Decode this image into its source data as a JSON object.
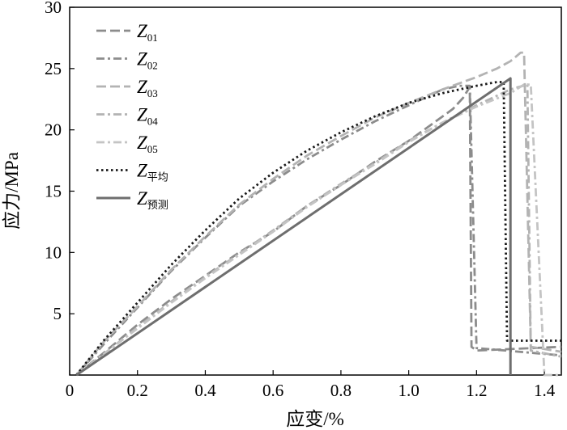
{
  "chart_data": {
    "type": "line",
    "title": "",
    "xlabel": "应变/%",
    "ylabel": "应力/MPa",
    "xlim": [
      0,
      1.45
    ],
    "ylim": [
      0,
      30
    ],
    "xticks": [
      0,
      0.2,
      0.4,
      0.6,
      0.8,
      1.0,
      1.2,
      1.4
    ],
    "xtick_labels": [
      "0",
      "0.2",
      "0.4",
      "0.6",
      "0.8",
      "1.0",
      "1.2",
      "1.4"
    ],
    "yticks": [
      5,
      10,
      15,
      20,
      25,
      30
    ],
    "ytick_labels": [
      "5",
      "10",
      "15",
      "20",
      "25",
      "30"
    ],
    "grid": false,
    "legend_position": "top-left",
    "series": [
      {
        "name": "Z01",
        "name_main": "Z",
        "name_sub": "01",
        "style": "dashed",
        "color": "#8c8c8c",
        "x": [
          0.02,
          0.1,
          0.2,
          0.3,
          0.4,
          0.5,
          0.6,
          0.7,
          0.8,
          0.9,
          1.0,
          1.05,
          1.1,
          1.13,
          1.16,
          1.18,
          1.185,
          1.2,
          1.45
        ],
        "y": [
          0.0,
          1.8,
          4.1,
          6.2,
          8.1,
          10.0,
          11.7,
          13.8,
          15.5,
          17.4,
          19.1,
          20.1,
          21.1,
          21.7,
          22.6,
          23.5,
          2.3,
          2.0,
          2.3
        ]
      },
      {
        "name": "Z02",
        "name_main": "Z",
        "name_sub": "02",
        "style": "dash-dot",
        "color": "#8c8c8c",
        "x": [
          0.02,
          0.1,
          0.2,
          0.3,
          0.4,
          0.5,
          0.6,
          0.7,
          0.8,
          0.9,
          1.0,
          1.1,
          1.15,
          1.18,
          1.2,
          1.45
        ],
        "y": [
          0.0,
          2.5,
          5.5,
          8.5,
          11.2,
          13.8,
          15.8,
          17.6,
          19.2,
          20.7,
          22.0,
          23.3,
          23.6,
          23.6,
          2.2,
          1.6
        ]
      },
      {
        "name": "Z03",
        "name_main": "Z",
        "name_sub": "03",
        "style": "dashed",
        "color": "#b3b3b3",
        "x": [
          0.02,
          0.1,
          0.2,
          0.3,
          0.4,
          0.5,
          0.6,
          0.7,
          0.8,
          0.9,
          1.0,
          1.1,
          1.2,
          1.26,
          1.3,
          1.33,
          1.34,
          1.36,
          1.45
        ],
        "y": [
          0.0,
          2.7,
          5.6,
          8.6,
          11.3,
          13.9,
          16.0,
          17.9,
          19.5,
          21.0,
          22.2,
          23.3,
          24.3,
          25.0,
          25.6,
          26.3,
          26.3,
          2.3,
          1.9
        ]
      },
      {
        "name": "Z04",
        "name_main": "Z",
        "name_sub": "04",
        "style": "dash-dot",
        "color": "#b3b3b3",
        "x": [
          0.02,
          0.1,
          0.2,
          0.3,
          0.4,
          0.5,
          0.6,
          0.7,
          0.8,
          0.9,
          1.0,
          1.1,
          1.2,
          1.3,
          1.35,
          1.36,
          1.45
        ],
        "y": [
          0.0,
          1.7,
          3.9,
          6.0,
          8.0,
          9.9,
          11.8,
          13.8,
          15.6,
          17.3,
          19.1,
          20.6,
          22.0,
          23.3,
          23.7,
          2.0,
          1.5
        ]
      },
      {
        "name": "Z05",
        "name_main": "Z",
        "name_sub": "05",
        "style": "dash-dot",
        "color": "#c4c4c4",
        "x": [
          0.02,
          0.1,
          0.2,
          0.3,
          0.4,
          0.5,
          0.6,
          0.7,
          0.8,
          0.9,
          1.0,
          1.1,
          1.2,
          1.3,
          1.34,
          1.36,
          1.4,
          1.45
        ],
        "y": [
          0.0,
          1.7,
          3.8,
          5.9,
          7.9,
          9.8,
          11.7,
          13.7,
          15.5,
          17.2,
          19.0,
          20.6,
          21.9,
          23.0,
          23.7,
          23.7,
          0.0,
          0.0
        ]
      },
      {
        "name": "Z平均",
        "name_main": "Z",
        "name_sub": "平均",
        "style": "dotted",
        "color": "#1a1a1a",
        "x": [
          0.02,
          0.1,
          0.2,
          0.3,
          0.4,
          0.5,
          0.6,
          0.7,
          0.8,
          0.9,
          1.0,
          1.1,
          1.2,
          1.26,
          1.28,
          1.29,
          1.45
        ],
        "y": [
          0.0,
          2.8,
          5.9,
          9.0,
          11.8,
          14.4,
          16.5,
          18.3,
          19.8,
          21.1,
          22.2,
          23.0,
          23.6,
          23.9,
          23.9,
          2.8,
          2.8
        ]
      },
      {
        "name": "Z预测",
        "name_main": "Z",
        "name_sub": "预测",
        "style": "solid",
        "color": "#6e6e6e",
        "x": [
          0.02,
          1.3,
          1.3
        ],
        "y": [
          0.0,
          24.2,
          0.0
        ]
      }
    ]
  }
}
